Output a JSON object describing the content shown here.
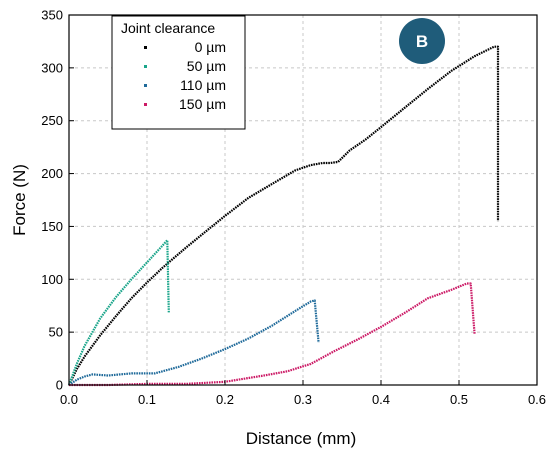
{
  "chart_data": {
    "type": "line",
    "panel_label": "B",
    "xlabel": "Distance (mm)",
    "ylabel": "Force (N)",
    "xlim": [
      0,
      0.6
    ],
    "ylim": [
      0,
      350
    ],
    "xticks": [
      "0.0",
      "0.1",
      "0.2",
      "0.3",
      "0.4",
      "0.5",
      "0.6"
    ],
    "yticks": [
      "0",
      "50",
      "100",
      "150",
      "200",
      "250",
      "300",
      "350"
    ],
    "grid": "dashed",
    "legend": {
      "title": "Joint clearance",
      "placement": "top-left"
    },
    "colors": {
      "badge": "#1F5C7A",
      "grid": "#c8c8c8"
    },
    "series": [
      {
        "name": "0 µm",
        "color": "#000000",
        "x": [
          0,
          0.01,
          0.02,
          0.04,
          0.06,
          0.08,
          0.1,
          0.12,
          0.15,
          0.18,
          0.2,
          0.23,
          0.26,
          0.29,
          0.31,
          0.325,
          0.335,
          0.345,
          0.36,
          0.38,
          0.4,
          0.43,
          0.46,
          0.49,
          0.52,
          0.545,
          0.55,
          0.55
        ],
        "y": [
          0,
          15,
          27,
          47,
          65,
          82,
          97,
          111,
          130,
          148,
          160,
          177,
          190,
          203,
          208,
          210,
          210,
          211,
          222,
          232,
          244,
          262,
          280,
          297,
          311,
          320,
          320,
          155
        ]
      },
      {
        "name": "50 µm",
        "color": "#1AA58A",
        "x": [
          0,
          0.01,
          0.02,
          0.04,
          0.06,
          0.08,
          0.1,
          0.12,
          0.126,
          0.128
        ],
        "y": [
          0,
          20,
          37,
          63,
          83,
          100,
          116,
          132,
          137,
          68
        ]
      },
      {
        "name": "110 µm",
        "color": "#1F6A9A",
        "x": [
          0,
          0.01,
          0.02,
          0.03,
          0.05,
          0.08,
          0.11,
          0.14,
          0.17,
          0.2,
          0.23,
          0.26,
          0.29,
          0.31,
          0.315,
          0.32
        ],
        "y": [
          0,
          5,
          8,
          10,
          9,
          11,
          11,
          17,
          25,
          34,
          44,
          56,
          70,
          79,
          80,
          40
        ]
      },
      {
        "name": "150 µm",
        "color": "#CC1A66",
        "x": [
          0,
          0.05,
          0.1,
          0.15,
          0.2,
          0.25,
          0.28,
          0.31,
          0.34,
          0.37,
          0.4,
          0.43,
          0.46,
          0.49,
          0.51,
          0.515,
          0.52
        ],
        "y": [
          0,
          0,
          1,
          1,
          3,
          9,
          13,
          20,
          32,
          43,
          55,
          68,
          82,
          90,
          96,
          96,
          48
        ]
      }
    ]
  }
}
